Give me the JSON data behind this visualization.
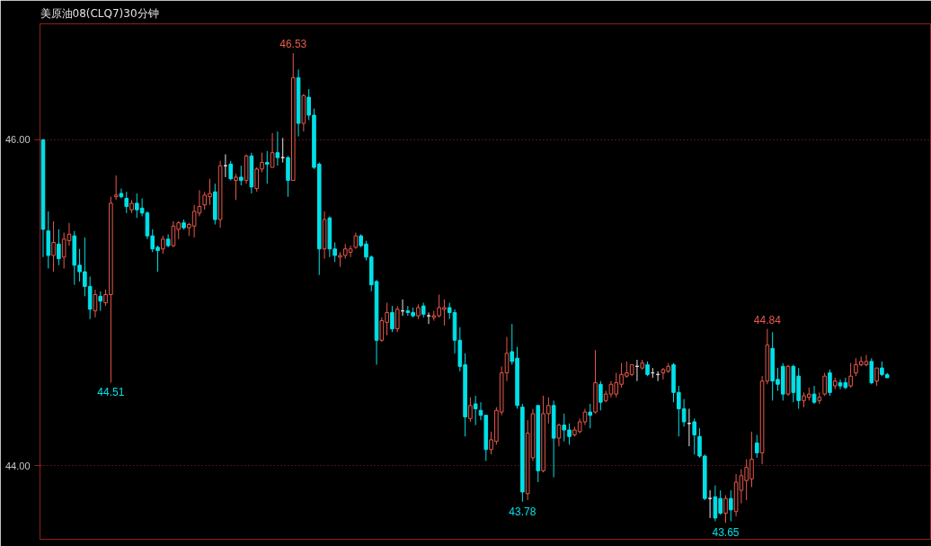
{
  "chart_data": {
    "type": "candlestick",
    "title": "美原油08(CLQ7)30分钟",
    "categories": [
      null,
      null,
      null,
      null,
      null,
      null,
      null,
      null,
      null,
      null,
      null,
      null,
      null,
      null,
      null,
      null,
      null,
      null,
      null,
      null,
      null,
      null,
      null,
      null,
      null,
      null,
      null,
      null,
      null,
      null,
      null,
      null,
      null,
      null,
      null,
      null,
      null,
      null,
      null,
      null,
      null,
      null,
      null,
      null,
      null,
      null,
      null,
      null,
      null,
      null,
      null,
      null,
      null,
      null,
      null,
      null,
      null,
      null,
      null,
      null,
      null,
      null,
      null,
      null,
      null,
      null,
      null,
      null,
      null,
      null,
      null,
      null,
      null,
      null,
      null,
      null,
      null,
      null,
      null,
      null,
      null,
      null,
      null,
      null,
      null,
      null,
      null,
      null,
      null,
      null,
      null,
      null,
      null,
      null,
      null,
      null,
      null,
      null,
      null,
      null,
      null,
      null,
      null,
      null,
      null,
      null,
      null,
      null,
      null,
      null,
      null,
      null,
      null,
      null,
      null,
      null,
      null,
      null,
      null,
      null,
      null,
      null,
      null,
      null,
      null,
      null,
      null,
      null,
      null,
      null,
      null,
      null,
      null,
      null,
      null,
      null,
      null,
      null,
      null,
      null,
      null,
      null,
      null,
      null,
      null,
      null,
      null,
      null,
      null,
      null,
      null,
      null,
      null,
      null,
      null,
      null,
      null,
      null,
      null,
      null,
      null,
      null,
      null
    ],
    "ohlc": [
      [
        46.0,
        46.0,
        45.28,
        45.45
      ],
      [
        45.44,
        45.56,
        45.21,
        45.29
      ],
      [
        45.29,
        45.5,
        45.19,
        45.37
      ],
      [
        45.36,
        45.45,
        45.23,
        45.27
      ],
      [
        45.28,
        45.43,
        45.21,
        45.39
      ],
      [
        45.38,
        45.49,
        45.35,
        45.42
      ],
      [
        45.41,
        45.44,
        45.11,
        45.23
      ],
      [
        45.23,
        45.33,
        45.13,
        45.19
      ],
      [
        45.19,
        45.4,
        45.04,
        45.1
      ],
      [
        45.1,
        45.16,
        44.9,
        44.96
      ],
      [
        44.95,
        45.08,
        44.91,
        45.05
      ],
      [
        45.04,
        45.07,
        44.95,
        45.01
      ],
      [
        45.0,
        45.08,
        44.98,
        45.05
      ],
      [
        45.05,
        45.65,
        44.51,
        45.61
      ],
      [
        45.65,
        45.78,
        45.63,
        45.66
      ],
      [
        45.67,
        45.7,
        45.64,
        45.65
      ],
      [
        45.64,
        45.68,
        45.55,
        45.59
      ],
      [
        45.57,
        45.63,
        45.55,
        45.61
      ],
      [
        45.61,
        45.67,
        45.52,
        45.57
      ],
      [
        45.58,
        45.64,
        45.53,
        45.55
      ],
      [
        45.55,
        45.56,
        45.39,
        45.41
      ],
      [
        45.41,
        45.45,
        45.31,
        45.33
      ],
      [
        45.34,
        45.35,
        45.19,
        45.32
      ],
      [
        45.33,
        45.41,
        45.3,
        45.39
      ],
      [
        45.39,
        45.42,
        45.34,
        45.35
      ],
      [
        45.35,
        45.5,
        45.34,
        45.47
      ],
      [
        45.45,
        45.5,
        45.39,
        45.49
      ],
      [
        45.49,
        45.51,
        45.45,
        45.46
      ],
      [
        45.46,
        45.49,
        45.41,
        45.48
      ],
      [
        45.47,
        45.6,
        45.4,
        45.56
      ],
      [
        45.55,
        45.69,
        45.53,
        45.59
      ],
      [
        45.6,
        45.68,
        45.57,
        45.66
      ],
      [
        45.65,
        45.76,
        45.6,
        45.67
      ],
      [
        45.68,
        45.73,
        45.48,
        45.51
      ],
      [
        45.51,
        45.87,
        45.46,
        45.84
      ],
      [
        45.84,
        45.91,
        45.77,
        45.84
      ],
      [
        45.85,
        45.87,
        45.75,
        45.76
      ],
      [
        45.75,
        45.79,
        45.63,
        45.77
      ],
      [
        45.77,
        45.84,
        45.72,
        45.75
      ],
      [
        45.75,
        45.91,
        45.73,
        45.9
      ],
      [
        45.9,
        45.92,
        45.67,
        45.71
      ],
      [
        45.7,
        45.83,
        45.68,
        45.82
      ],
      [
        45.82,
        45.92,
        45.8,
        45.86
      ],
      [
        45.86,
        45.93,
        45.73,
        45.85
      ],
      [
        45.83,
        46.04,
        45.83,
        45.92
      ],
      [
        45.92,
        46.05,
        45.84,
        45.89
      ],
      [
        45.89,
        46.01,
        45.86,
        45.89
      ],
      [
        45.89,
        45.9,
        45.65,
        45.75
      ],
      [
        45.75,
        46.53,
        45.75,
        46.38
      ],
      [
        46.38,
        46.43,
        46.02,
        46.1
      ],
      [
        46.1,
        46.28,
        46.05,
        46.27
      ],
      [
        46.26,
        46.31,
        46.12,
        46.15
      ],
      [
        46.15,
        46.19,
        45.82,
        45.83
      ],
      [
        45.85,
        45.86,
        45.17,
        45.33
      ],
      [
        45.33,
        45.56,
        45.27,
        45.51
      ],
      [
        45.52,
        45.53,
        45.28,
        45.33
      ],
      [
        45.33,
        45.37,
        45.25,
        45.29
      ],
      [
        45.28,
        45.31,
        45.22,
        45.29
      ],
      [
        45.29,
        45.36,
        45.27,
        45.33
      ],
      [
        45.31,
        45.35,
        45.28,
        45.33
      ],
      [
        45.34,
        45.43,
        45.33,
        45.41
      ],
      [
        45.41,
        45.42,
        45.34,
        45.35
      ],
      [
        45.36,
        45.38,
        45.26,
        45.28
      ],
      [
        45.28,
        45.29,
        45.07,
        45.11
      ],
      [
        45.13,
        45.14,
        44.62,
        44.77
      ],
      [
        44.77,
        44.91,
        44.76,
        44.89
      ],
      [
        44.88,
        45.0,
        44.8,
        44.94
      ],
      [
        44.94,
        44.98,
        44.82,
        44.84
      ],
      [
        44.84,
        44.98,
        44.82,
        44.96
      ],
      [
        44.95,
        45.02,
        44.92,
        44.95
      ],
      [
        44.95,
        44.98,
        44.92,
        44.94
      ],
      [
        44.94,
        44.97,
        44.91,
        44.92
      ],
      [
        44.92,
        44.99,
        44.9,
        44.97
      ],
      [
        44.98,
        45.0,
        44.91,
        44.93
      ],
      [
        44.92,
        44.94,
        44.87,
        44.92
      ],
      [
        44.91,
        44.95,
        44.89,
        44.92
      ],
      [
        44.92,
        45.05,
        44.91,
        44.97
      ],
      [
        44.96,
        45.02,
        44.86,
        44.97
      ],
      [
        44.97,
        45.0,
        44.9,
        44.94
      ],
      [
        44.94,
        44.96,
        44.69,
        44.77
      ],
      [
        44.77,
        44.85,
        44.58,
        44.61
      ],
      [
        44.62,
        44.69,
        44.18,
        44.3
      ],
      [
        44.29,
        44.42,
        44.27,
        44.37
      ],
      [
        44.38,
        44.43,
        44.25,
        44.35
      ],
      [
        44.34,
        44.39,
        44.28,
        44.31
      ],
      [
        44.31,
        44.31,
        44.03,
        44.1
      ],
      [
        44.1,
        44.21,
        44.07,
        44.16
      ],
      [
        44.15,
        44.36,
        44.13,
        44.34
      ],
      [
        44.33,
        44.61,
        44.31,
        44.57
      ],
      [
        44.57,
        44.79,
        44.52,
        44.69
      ],
      [
        44.7,
        44.87,
        44.62,
        44.64
      ],
      [
        44.66,
        44.73,
        44.35,
        44.37
      ],
      [
        44.36,
        44.38,
        43.78,
        43.84
      ],
      [
        43.83,
        44.28,
        43.79,
        44.2
      ],
      [
        44.05,
        44.35,
        44.03,
        44.32
      ],
      [
        44.37,
        44.37,
        43.9,
        43.97
      ],
      [
        43.97,
        44.43,
        43.96,
        44.32
      ],
      [
        44.32,
        44.42,
        44.26,
        44.37
      ],
      [
        44.37,
        44.4,
        43.93,
        44.17
      ],
      [
        44.17,
        44.26,
        44.12,
        44.25
      ],
      [
        44.25,
        44.32,
        44.15,
        44.22
      ],
      [
        44.22,
        44.26,
        44.13,
        44.18
      ],
      [
        44.19,
        44.24,
        44.18,
        44.22
      ],
      [
        44.21,
        44.29,
        44.2,
        44.27
      ],
      [
        44.27,
        44.35,
        44.25,
        44.33
      ],
      [
        44.33,
        44.38,
        44.23,
        44.31
      ],
      [
        44.33,
        44.71,
        44.32,
        44.51
      ],
      [
        44.5,
        44.52,
        44.34,
        44.39
      ],
      [
        44.4,
        44.46,
        44.39,
        44.44
      ],
      [
        44.44,
        44.52,
        44.42,
        44.5
      ],
      [
        44.44,
        44.57,
        44.42,
        44.51
      ],
      [
        44.5,
        44.63,
        44.48,
        44.56
      ],
      [
        44.55,
        44.64,
        44.54,
        44.57
      ],
      [
        44.56,
        44.62,
        44.55,
        44.62
      ],
      [
        44.61,
        44.65,
        44.52,
        44.61
      ],
      [
        44.6,
        44.65,
        44.59,
        44.63
      ],
      [
        44.62,
        44.64,
        44.55,
        44.56
      ],
      [
        44.57,
        44.6,
        44.54,
        44.57
      ],
      [
        44.56,
        44.58,
        44.52,
        44.56
      ],
      [
        44.57,
        44.6,
        44.53,
        44.59
      ],
      [
        44.58,
        44.63,
        44.57,
        44.61
      ],
      [
        44.62,
        44.63,
        44.39,
        44.45
      ],
      [
        44.45,
        44.49,
        44.18,
        44.35
      ],
      [
        44.35,
        44.41,
        44.24,
        44.27
      ],
      [
        44.26,
        44.35,
        44.12,
        44.26
      ],
      [
        44.27,
        44.29,
        44.07,
        44.19
      ],
      [
        44.18,
        44.23,
        44.05,
        44.06
      ],
      [
        44.06,
        44.07,
        43.79,
        43.8
      ],
      [
        43.8,
        43.85,
        43.68,
        43.8
      ],
      [
        43.81,
        43.88,
        43.66,
        43.68
      ],
      [
        43.8,
        43.85,
        43.7,
        43.71
      ],
      [
        43.71,
        43.82,
        43.65,
        43.8
      ],
      [
        43.8,
        43.85,
        43.66,
        43.73
      ],
      [
        43.72,
        43.95,
        43.69,
        43.9
      ],
      [
        43.85,
        43.98,
        43.77,
        43.94
      ],
      [
        43.91,
        44.04,
        43.79,
        43.99
      ],
      [
        43.92,
        44.21,
        43.87,
        44.04
      ],
      [
        44.14,
        44.19,
        44.05,
        44.08
      ],
      [
        44.08,
        44.55,
        44.01,
        44.52
      ],
      [
        44.52,
        44.84,
        44.5,
        44.74
      ],
      [
        44.72,
        44.82,
        44.4,
        44.52
      ],
      [
        44.53,
        44.6,
        44.46,
        44.5
      ],
      [
        44.61,
        44.63,
        44.4,
        44.44
      ],
      [
        44.44,
        44.62,
        44.43,
        44.61
      ],
      [
        44.61,
        44.62,
        44.39,
        44.45
      ],
      [
        44.55,
        44.6,
        44.35,
        44.4
      ],
      [
        44.4,
        44.45,
        44.36,
        44.43
      ],
      [
        44.42,
        44.48,
        44.4,
        44.44
      ],
      [
        44.44,
        44.49,
        44.38,
        44.39
      ],
      [
        44.4,
        44.45,
        44.38,
        44.42
      ],
      [
        44.44,
        44.57,
        44.43,
        44.55
      ],
      [
        44.57,
        44.59,
        44.43,
        44.45
      ],
      [
        44.49,
        44.54,
        44.47,
        44.52
      ],
      [
        44.51,
        44.53,
        44.47,
        44.49
      ],
      [
        44.51,
        44.54,
        44.47,
        44.48
      ],
      [
        44.49,
        44.63,
        44.48,
        44.55
      ],
      [
        44.57,
        44.66,
        44.55,
        44.62
      ],
      [
        44.62,
        44.67,
        44.61,
        44.64
      ],
      [
        44.62,
        44.68,
        44.61,
        44.64
      ],
      [
        44.64,
        44.66,
        44.5,
        44.51
      ],
      [
        44.52,
        44.6,
        44.49,
        44.6
      ],
      [
        44.6,
        44.64,
        44.55,
        44.56
      ],
      [
        44.56,
        44.57,
        44.54,
        44.54
      ]
    ],
    "ylim": [
      43.55,
      46.71
    ],
    "yticks": [
      {
        "value": 46,
        "label": "46.00"
      },
      {
        "value": 44,
        "label": "44.00"
      }
    ],
    "grid": "y",
    "annotations": [
      {
        "text": "46.53",
        "y": 46.53
      },
      {
        "text": "44.51",
        "y": 44.51
      },
      {
        "text": "43.78",
        "y": 43.78
      },
      {
        "text": "43.65",
        "y": 43.65
      },
      {
        "text": "44.84",
        "y": 44.84
      }
    ]
  }
}
